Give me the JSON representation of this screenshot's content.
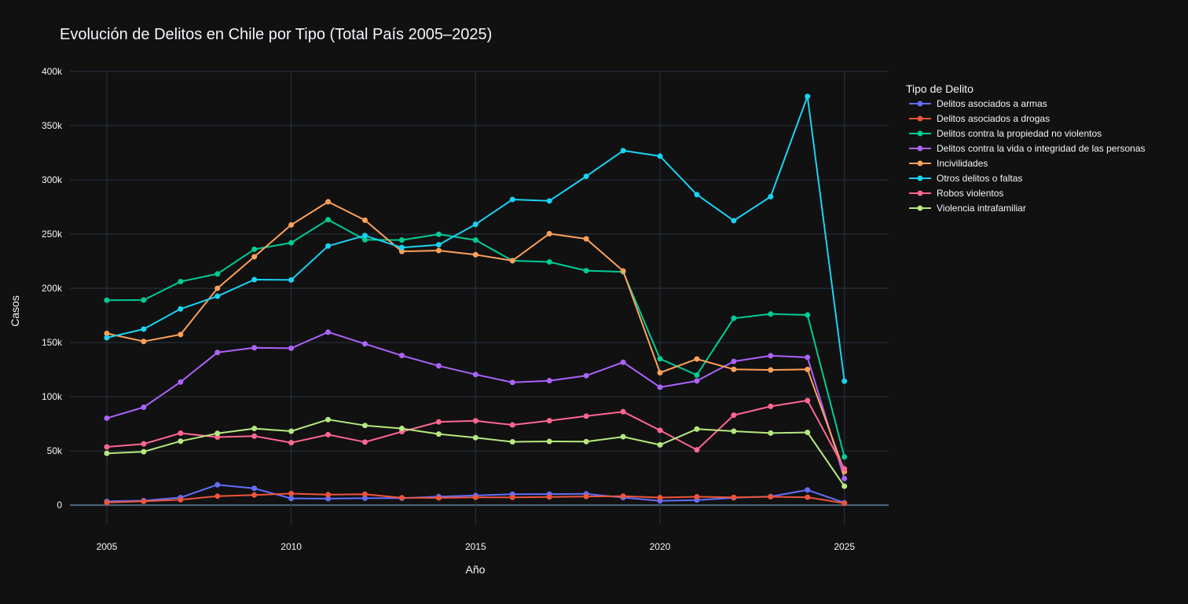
{
  "chart_data": {
    "type": "line",
    "title": "Evolución de Delitos en Chile por Tipo (Total País 2005–2025)",
    "xlabel": "Año",
    "ylabel": "Casos",
    "legend_title": "Tipo de Delito",
    "legend_position": "right",
    "grid": true,
    "xlim": [
      2004,
      2026.2
    ],
    "ylim": [
      -18000,
      400000
    ],
    "x_ticks": [
      2005,
      2010,
      2015,
      2020,
      2025
    ],
    "y_ticks": [
      0,
      50000,
      100000,
      150000,
      200000,
      250000,
      300000,
      350000,
      400000
    ],
    "y_tick_labels": [
      "0",
      "50k",
      "100k",
      "150k",
      "200k",
      "250k",
      "300k",
      "350k",
      "400k"
    ],
    "x": [
      2005,
      2006,
      2007,
      2008,
      2009,
      2010,
      2011,
      2012,
      2013,
      2014,
      2015,
      2016,
      2017,
      2018,
      2019,
      2020,
      2021,
      2022,
      2023,
      2024,
      2025
    ],
    "series": [
      {
        "name": "Delitos asociados a armas",
        "color": "#636efa",
        "values": [
          3500,
          4200,
          7000,
          18800,
          15500,
          6200,
          6000,
          6400,
          6400,
          7900,
          8900,
          10100,
          10200,
          10400,
          7000,
          4000,
          4700,
          6800,
          8000,
          14000,
          2200
        ]
      },
      {
        "name": "Delitos asociados a drogas",
        "color": "#ef553b",
        "values": [
          2500,
          3500,
          5000,
          8300,
          9400,
          10700,
          9700,
          10100,
          6800,
          6700,
          7200,
          7200,
          7500,
          8000,
          8300,
          7000,
          7700,
          7200,
          7700,
          7300,
          1800
        ]
      },
      {
        "name": "Delitos contra la propiedad no violentos",
        "color": "#00cc96",
        "values": [
          189000,
          189200,
          206200,
          213300,
          236000,
          242000,
          263300,
          244800,
          244500,
          249800,
          244500,
          225500,
          224300,
          216300,
          215200,
          135000,
          120000,
          172400,
          176300,
          175400,
          44500
        ]
      },
      {
        "name": "Delitos contra la vida o integridad de las personas",
        "color": "#ab63fa",
        "values": [
          80200,
          90300,
          113600,
          140800,
          145200,
          144700,
          159600,
          148800,
          138000,
          128500,
          120500,
          113200,
          114800,
          119400,
          131800,
          108800,
          114600,
          132600,
          137800,
          136300,
          24500
        ]
      },
      {
        "name": "Incivilidades",
        "color": "#ffa15a",
        "values": [
          158400,
          151000,
          157400,
          200000,
          229100,
          258500,
          279800,
          262800,
          234000,
          234800,
          231000,
          225500,
          250400,
          245600,
          216000,
          122200,
          134800,
          125300,
          124700,
          125200,
          31000
        ]
      },
      {
        "name": "Otros delitos o faltas",
        "color": "#19d3f3",
        "values": [
          154400,
          162400,
          181000,
          192700,
          208000,
          207700,
          239000,
          248700,
          237600,
          240200,
          259000,
          281900,
          280600,
          303300,
          327000,
          321900,
          286400,
          262400,
          284500,
          377000,
          114400
        ]
      },
      {
        "name": "Robos violentos",
        "color": "#ff6692",
        "values": [
          53700,
          56500,
          66400,
          62800,
          63700,
          57600,
          65000,
          58200,
          67800,
          76800,
          77800,
          74000,
          77900,
          82100,
          86200,
          69000,
          51000,
          83000,
          91100,
          96500,
          33500
        ]
      },
      {
        "name": "Violencia intrafamiliar",
        "color": "#b6e880",
        "values": [
          47800,
          49300,
          59000,
          66200,
          70700,
          68200,
          78900,
          73500,
          70700,
          65600,
          62200,
          58400,
          58800,
          58600,
          63100,
          55600,
          70200,
          68200,
          66500,
          67100,
          17500
        ]
      }
    ]
  }
}
